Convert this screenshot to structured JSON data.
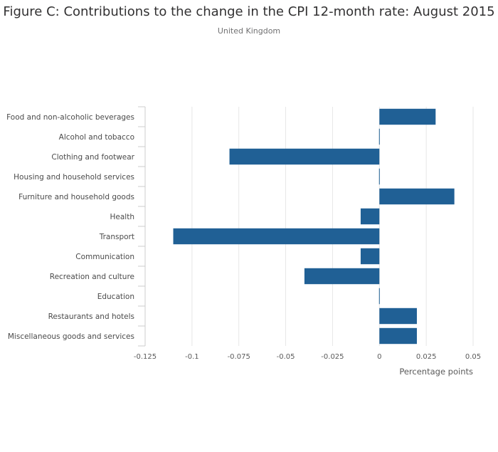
{
  "chart_data": {
    "type": "bar",
    "orientation": "horizontal",
    "title": "Figure C: Contributions to the change in the CPI 12-month rate: August 2015",
    "subtitle": "United Kingdom",
    "xlabel": "Percentage points",
    "ylabel": "",
    "xlim": [
      -0.125,
      0.05
    ],
    "xticks": [
      -0.125,
      -0.1,
      -0.075,
      -0.05,
      -0.025,
      0,
      0.025,
      0.05
    ],
    "xtick_labels": [
      "-0.125",
      "-0.1",
      "-0.075",
      "-0.05",
      "-0.025",
      "0",
      "0.025",
      "0.05"
    ],
    "grid": true,
    "bar_color": "#206095",
    "categories": [
      "Food and non-alcoholic beverages",
      "Alcohol and tobacco",
      "Clothing and footwear",
      "Housing and household services",
      "Furniture and household goods",
      "Health",
      "Transport",
      "Communication",
      "Recreation and culture",
      "Education",
      "Restaurants and hotels",
      "Miscellaneous goods and services"
    ],
    "values": [
      0.03,
      0,
      -0.08,
      0,
      0.04,
      -0.01,
      -0.11,
      -0.01,
      -0.04,
      0,
      0.02,
      0.02
    ]
  }
}
